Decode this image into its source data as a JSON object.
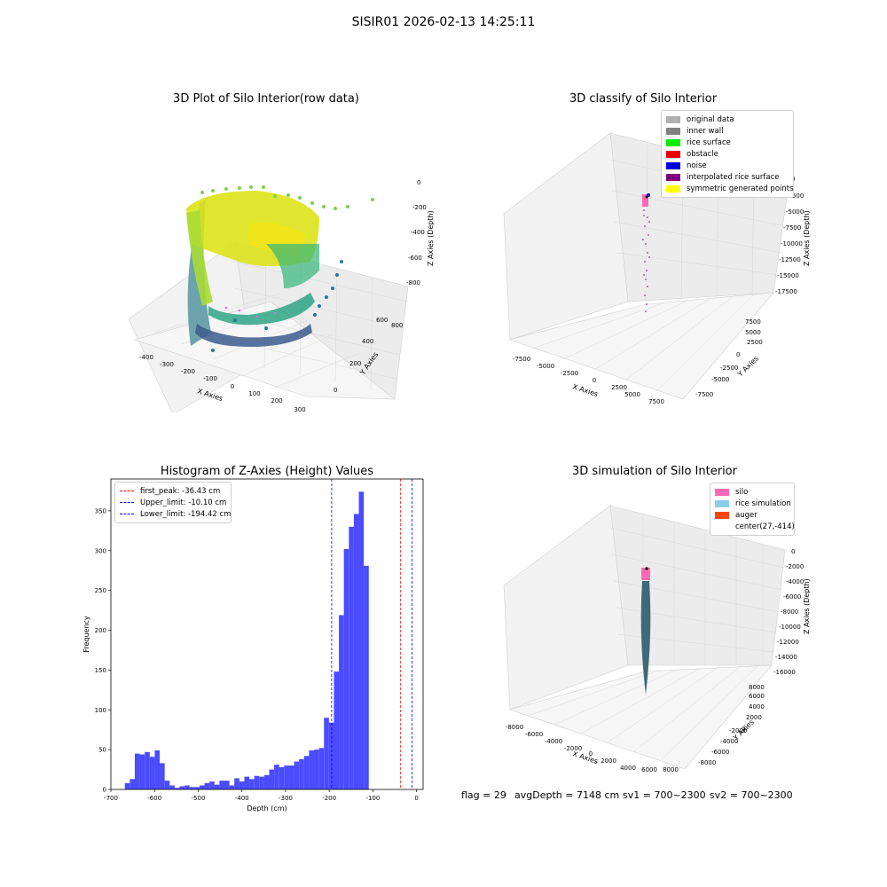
{
  "figure": {
    "suptitle": "SISIR01 2026-02-13 14:25:11"
  },
  "panels": {
    "p1": {
      "title": "3D Plot of Silo Interior(row data)",
      "xlabel": "X Axies",
      "ylabel": "Y Axies",
      "zlabel": "Z Axies (Depth)",
      "xticks": [
        "-400",
        "-300",
        "-200",
        "-100",
        "0",
        "100",
        "200",
        "300"
      ],
      "yticks": [
        "0",
        "200",
        "400",
        "600",
        "800"
      ],
      "zticks": [
        "0",
        "-200",
        "-400",
        "-600",
        "-800"
      ]
    },
    "p2": {
      "title": "3D classify of Silo Interior",
      "xlabel": "X Axies",
      "ylabel": "Y Axies",
      "zlabel": "Z Axies (Depth)",
      "xticks": [
        "-7500",
        "-5000",
        "-2500",
        "0",
        "2500",
        "5000",
        "7500"
      ],
      "yticks": [
        "-7500",
        "-5000",
        "-2500",
        "0",
        "2500",
        "5000",
        "7500"
      ],
      "zticks": [
        "0",
        "-2500",
        "-5000",
        "-7500",
        "-10000",
        "-12500",
        "-15000",
        "-17500"
      ],
      "legend": [
        {
          "label": "original data",
          "color": "#b0b0b0"
        },
        {
          "label": "inner wall",
          "color": "#808080"
        },
        {
          "label": "rice surface",
          "color": "#00ee00"
        },
        {
          "label": "obstacle",
          "color": "#ee0000"
        },
        {
          "label": "noise",
          "color": "#0000dd"
        },
        {
          "label": "interpolated rice surface",
          "color": "#800080"
        },
        {
          "label": "symmetric generated points",
          "color": "#ffff00"
        }
      ]
    },
    "p4": {
      "title": "3D simulation of Silo Interior",
      "xlabel": "X Axies",
      "ylabel": "Y Axies",
      "zlabel": "Z Axies (Depth)",
      "xticks": [
        "-8000",
        "-6000",
        "-4000",
        "-2000",
        "0",
        "2000",
        "4000",
        "6000",
        "8000"
      ],
      "yticks": [
        "-8000",
        "-6000",
        "-4000",
        "-2000",
        "0",
        "2000",
        "4000",
        "6000",
        "8000"
      ],
      "zticks": [
        "0",
        "-2000",
        "-4000",
        "-6000",
        "-8000",
        "-10000",
        "-12000",
        "-14000",
        "-16000"
      ],
      "legend": [
        {
          "label": "silo",
          "color": "#ff69b4"
        },
        {
          "label": "rice simulation",
          "color": "#87ceeb"
        },
        {
          "label": "auger",
          "color": "#ff4500"
        },
        {
          "label": "center(27,-414)",
          "color": "#ffffff"
        }
      ]
    }
  },
  "footer": {
    "flag": "flag = 29",
    "avg": "avgDepth = 7148 cm",
    "sv1": "sv1 = 700~2300",
    "sv2": "sv2 = 700~2300"
  },
  "chart_data": [
    {
      "type": "histogram",
      "title": "Histogram of Z-Axies (Height) Values",
      "xlabel": "Depth (cm)",
      "ylabel": "Frequency",
      "xlim": [
        -700,
        15
      ],
      "ylim": [
        0,
        390
      ],
      "xticks": [
        -700,
        -600,
        -500,
        -400,
        -300,
        -200,
        -100,
        0
      ],
      "yticks": [
        0,
        50,
        100,
        150,
        200,
        250,
        300,
        350
      ],
      "bar_color": "#4b4bff",
      "bin_width": 11.4,
      "bins_start": [
        -668,
        -656.6,
        -645.2,
        -633.8,
        -622.4,
        -611,
        -599.6,
        -588.2,
        -576.8,
        -565.4,
        -554,
        -542.6,
        -531.2,
        -519.8,
        -508.4,
        -497,
        -485.6,
        -474.2,
        -462.8,
        -451.4,
        -440,
        -428.6,
        -417.2,
        -405.8,
        -394.4,
        -383,
        -371.6,
        -360.2,
        -348.8,
        -337.4,
        -326,
        -314.6,
        -303.2,
        -291.8,
        -280.4,
        -269,
        -257.6,
        -246.2,
        -234.8,
        -223.4,
        -212,
        -200.6,
        -189.2,
        -177.8,
        -166.4,
        -155,
        -143.6,
        -132.2,
        -120.8,
        -109.4,
        -98,
        -86.6,
        -75.2,
        -63.8,
        -52.4,
        -41,
        -29.6,
        -18.2,
        -6.8
      ],
      "values": [
        8,
        13,
        45,
        44,
        47,
        41,
        49,
        33,
        11,
        5,
        2,
        4,
        5,
        3,
        3,
        5,
        8,
        10,
        6,
        11,
        11,
        5,
        14,
        10,
        16,
        13,
        17,
        16,
        18,
        25,
        31,
        28,
        30,
        30,
        35,
        38,
        42,
        49,
        50,
        52,
        90,
        84,
        148,
        219,
        302,
        330,
        346,
        374,
        281,
        0,
        0,
        0,
        0,
        0,
        0,
        0,
        0,
        0,
        0
      ],
      "lines": [
        {
          "label": "first_peak: -36.43 cm",
          "x": -36.43,
          "color": "#ff0000"
        },
        {
          "label": "Upper_limit: -10.10 cm",
          "x": -10.1,
          "color": "#0000ff"
        },
        {
          "label": "Lower_limit: -194.42 cm",
          "x": -194.42,
          "color": "#0000ff"
        }
      ]
    }
  ]
}
